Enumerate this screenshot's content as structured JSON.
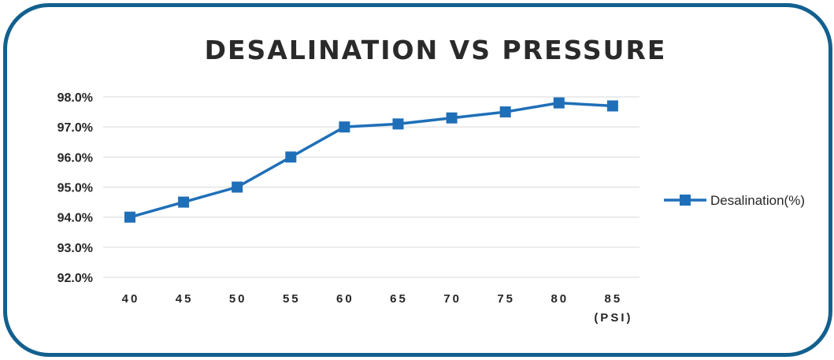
{
  "chart_data": {
    "type": "line",
    "title": "DESALINATION VS PRESSURE",
    "categories": [
      "40",
      "45",
      "50",
      "55",
      "60",
      "65",
      "70",
      "75",
      "80",
      "85"
    ],
    "x_unit_label": "(PSI)",
    "series": [
      {
        "name": "Desalination(%)",
        "values": [
          94.0,
          94.5,
          95.0,
          96.0,
          97.0,
          97.1,
          97.3,
          97.5,
          97.8,
          97.7
        ]
      }
    ],
    "ylim": [
      92.0,
      98.0
    ],
    "yticks": [
      "92.0%",
      "93.0%",
      "94.0%",
      "95.0%",
      "96.0%",
      "97.0%",
      "98.0%"
    ],
    "grid": true,
    "legend": "right",
    "colors": {
      "series": "#1f6fb8",
      "grid": "#d9d9d9",
      "frame": "#12608f"
    }
  }
}
